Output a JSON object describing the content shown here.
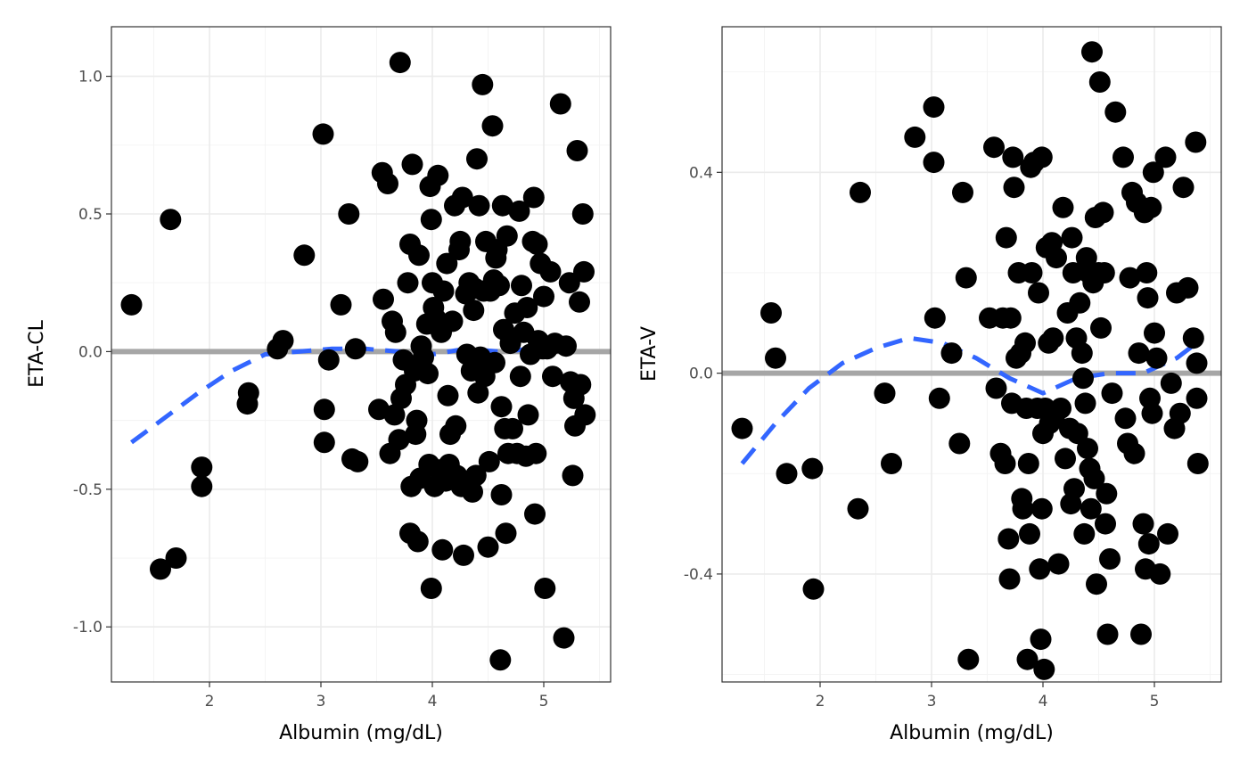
{
  "chart_data": [
    {
      "type": "scatter",
      "xlabel": "Albumin (mg/dL)",
      "ylabel": "ETA-CL",
      "xlim": [
        1.12,
        5.6
      ],
      "ylim": [
        -1.2,
        1.18
      ],
      "x_ticks": [
        2,
        3,
        4,
        5
      ],
      "x_tick_labels": [
        "2",
        "3",
        "4",
        "5"
      ],
      "y_ticks": [
        -1.0,
        -0.5,
        0.0,
        0.5,
        1.0
      ],
      "y_tick_labels": [
        "-1.0",
        "-0.5",
        "0.0",
        "0.5",
        "1.0"
      ],
      "grid": true,
      "reference_line": {
        "y": 0,
        "color": "#a6a6a6"
      },
      "smooth": {
        "color": "#3366ff",
        "style": "dashed",
        "x": [
          1.3,
          1.6,
          1.9,
          2.2,
          2.5,
          2.8,
          3.1,
          3.4,
          3.7,
          4.0,
          4.3,
          4.6,
          4.9,
          5.2
        ],
        "y": [
          -0.33,
          -0.24,
          -0.15,
          -0.07,
          -0.01,
          0.0,
          0.01,
          0.01,
          0.0,
          -0.01,
          0.01,
          0.0,
          0.01,
          0.01
        ]
      },
      "points": [
        [
          1.3,
          0.17
        ],
        [
          1.56,
          -0.79
        ],
        [
          1.65,
          0.48
        ],
        [
          1.7,
          -0.75
        ],
        [
          1.93,
          -0.42
        ],
        [
          1.93,
          -0.49
        ],
        [
          2.34,
          -0.19
        ],
        [
          2.35,
          -0.15
        ],
        [
          2.61,
          0.01
        ],
        [
          2.66,
          0.04
        ],
        [
          2.85,
          0.35
        ],
        [
          3.02,
          0.79
        ],
        [
          3.03,
          -0.21
        ],
        [
          3.03,
          -0.33
        ],
        [
          3.07,
          -0.03
        ],
        [
          3.18,
          0.17
        ],
        [
          3.25,
          0.5
        ],
        [
          3.28,
          -0.39
        ],
        [
          3.31,
          0.01
        ],
        [
          3.33,
          -0.4
        ],
        [
          3.52,
          -0.21
        ],
        [
          3.55,
          0.65
        ],
        [
          3.56,
          0.19
        ],
        [
          3.6,
          0.61
        ],
        [
          3.62,
          -0.37
        ],
        [
          3.64,
          0.11
        ],
        [
          3.66,
          -0.23
        ],
        [
          3.67,
          0.07
        ],
        [
          3.7,
          -0.32
        ],
        [
          3.71,
          1.05
        ],
        [
          3.72,
          -0.17
        ],
        [
          3.74,
          -0.03
        ],
        [
          3.76,
          -0.12
        ],
        [
          3.78,
          0.25
        ],
        [
          3.8,
          0.39
        ],
        [
          3.8,
          -0.66
        ],
        [
          3.81,
          -0.49
        ],
        [
          3.82,
          0.68
        ],
        [
          3.84,
          -0.07
        ],
        [
          3.85,
          -0.3
        ],
        [
          3.86,
          -0.25
        ],
        [
          3.87,
          -0.69
        ],
        [
          3.88,
          0.35
        ],
        [
          3.89,
          -0.46
        ],
        [
          3.9,
          0.02
        ],
        [
          3.92,
          -0.02
        ],
        [
          3.95,
          0.1
        ],
        [
          3.96,
          -0.08
        ],
        [
          3.97,
          -0.41
        ],
        [
          3.98,
          0.6
        ],
        [
          3.99,
          0.48
        ],
        [
          3.99,
          -0.86
        ],
        [
          4.0,
          0.25
        ],
        [
          4.01,
          0.16
        ],
        [
          4.02,
          -0.49
        ],
        [
          4.03,
          0.12
        ],
        [
          4.05,
          0.64
        ],
        [
          4.06,
          -0.43
        ],
        [
          4.08,
          0.07
        ],
        [
          4.09,
          -0.72
        ],
        [
          4.1,
          0.22
        ],
        [
          4.12,
          -0.47
        ],
        [
          4.13,
          0.32
        ],
        [
          4.14,
          -0.16
        ],
        [
          4.15,
          -0.41
        ],
        [
          4.16,
          -0.3
        ],
        [
          4.18,
          0.11
        ],
        [
          4.2,
          0.53
        ],
        [
          4.21,
          -0.27
        ],
        [
          4.22,
          -0.45
        ],
        [
          4.24,
          0.37
        ],
        [
          4.25,
          0.4
        ],
        [
          4.26,
          -0.49
        ],
        [
          4.27,
          0.56
        ],
        [
          4.28,
          -0.74
        ],
        [
          4.3,
          0.21
        ],
        [
          4.31,
          -0.01
        ],
        [
          4.33,
          0.25
        ],
        [
          4.35,
          -0.07
        ],
        [
          4.36,
          -0.51
        ],
        [
          4.37,
          0.15
        ],
        [
          4.38,
          0.23
        ],
        [
          4.39,
          -0.45
        ],
        [
          4.4,
          0.7
        ],
        [
          4.41,
          -0.15
        ],
        [
          4.42,
          0.53
        ],
        [
          4.43,
          -0.02
        ],
        [
          4.44,
          -0.05
        ],
        [
          4.45,
          0.97
        ],
        [
          4.46,
          0.22
        ],
        [
          4.47,
          -0.09
        ],
        [
          4.48,
          0.4
        ],
        [
          4.5,
          -0.71
        ],
        [
          4.51,
          -0.4
        ],
        [
          4.52,
          0.22
        ],
        [
          4.54,
          0.82
        ],
        [
          4.55,
          0.26
        ],
        [
          4.56,
          -0.04
        ],
        [
          4.57,
          0.34
        ],
        [
          4.58,
          0.37
        ],
        [
          4.6,
          0.24
        ],
        [
          4.61,
          -1.12
        ],
        [
          4.62,
          -0.52
        ],
        [
          4.62,
          -0.2
        ],
        [
          4.63,
          0.53
        ],
        [
          4.64,
          0.08
        ],
        [
          4.65,
          -0.28
        ],
        [
          4.66,
          -0.66
        ],
        [
          4.67,
          0.42
        ],
        [
          4.68,
          -0.37
        ],
        [
          4.7,
          0.03
        ],
        [
          4.72,
          -0.28
        ],
        [
          4.74,
          0.14
        ],
        [
          4.76,
          -0.37
        ],
        [
          4.78,
          0.51
        ],
        [
          4.79,
          -0.09
        ],
        [
          4.8,
          0.24
        ],
        [
          4.82,
          0.07
        ],
        [
          4.84,
          -0.38
        ],
        [
          4.85,
          0.16
        ],
        [
          4.86,
          -0.23
        ],
        [
          4.88,
          -0.01
        ],
        [
          4.9,
          0.4
        ],
        [
          4.91,
          0.56
        ],
        [
          4.92,
          -0.59
        ],
        [
          4.93,
          -0.37
        ],
        [
          4.94,
          0.39
        ],
        [
          4.95,
          0.04
        ],
        [
          4.97,
          0.32
        ],
        [
          4.99,
          0.01
        ],
        [
          5.0,
          0.2
        ],
        [
          5.01,
          -0.86
        ],
        [
          5.03,
          0.01
        ],
        [
          5.06,
          0.29
        ],
        [
          5.08,
          -0.09
        ],
        [
          5.1,
          0.03
        ],
        [
          5.15,
          0.9
        ],
        [
          5.18,
          -1.04
        ],
        [
          5.2,
          0.02
        ],
        [
          5.23,
          0.25
        ],
        [
          5.24,
          -0.11
        ],
        [
          5.26,
          -0.45
        ],
        [
          5.27,
          -0.17
        ],
        [
          5.28,
          -0.27
        ],
        [
          5.3,
          0.73
        ],
        [
          5.32,
          0.18
        ],
        [
          5.33,
          -0.12
        ],
        [
          5.35,
          0.5
        ],
        [
          5.36,
          0.29
        ],
        [
          5.37,
          -0.23
        ]
      ]
    },
    {
      "type": "scatter",
      "xlabel": "Albumin (mg/dL)",
      "ylabel": "ETA-V",
      "xlim": [
        1.12,
        5.6
      ],
      "ylim": [
        -0.615,
        0.69
      ],
      "x_ticks": [
        2,
        3,
        4,
        5
      ],
      "x_tick_labels": [
        "2",
        "3",
        "4",
        "5"
      ],
      "y_ticks": [
        -0.4,
        0.0,
        0.4
      ],
      "y_tick_labels": [
        "-0.4",
        "0.0",
        "0.4"
      ],
      "grid": true,
      "reference_line": {
        "y": 0,
        "color": "#a6a6a6"
      },
      "smooth": {
        "color": "#3366ff",
        "style": "dashed",
        "x": [
          1.3,
          1.6,
          1.9,
          2.2,
          2.5,
          2.8,
          3.1,
          3.4,
          3.7,
          4.0,
          4.3,
          4.6,
          4.9,
          5.2,
          5.38
        ],
        "y": [
          -0.18,
          -0.1,
          -0.03,
          0.02,
          0.05,
          0.07,
          0.06,
          0.03,
          -0.01,
          -0.04,
          -0.01,
          0.0,
          0.0,
          0.03,
          0.06
        ]
      },
      "points": [
        [
          1.3,
          -0.11
        ],
        [
          1.56,
          0.12
        ],
        [
          1.6,
          0.03
        ],
        [
          1.7,
          -0.2
        ],
        [
          1.93,
          -0.19
        ],
        [
          1.94,
          -0.43
        ],
        [
          2.34,
          -0.27
        ],
        [
          2.36,
          0.36
        ],
        [
          2.58,
          -0.04
        ],
        [
          2.64,
          -0.18
        ],
        [
          2.85,
          0.47
        ],
        [
          3.02,
          0.53
        ],
        [
          3.02,
          0.42
        ],
        [
          3.03,
          0.11
        ],
        [
          3.07,
          -0.05
        ],
        [
          3.18,
          0.04
        ],
        [
          3.25,
          -0.14
        ],
        [
          3.28,
          0.36
        ],
        [
          3.31,
          0.19
        ],
        [
          3.33,
          -0.57
        ],
        [
          3.52,
          0.11
        ],
        [
          3.56,
          0.45
        ],
        [
          3.58,
          -0.03
        ],
        [
          3.62,
          -0.16
        ],
        [
          3.64,
          0.11
        ],
        [
          3.66,
          -0.18
        ],
        [
          3.67,
          0.27
        ],
        [
          3.69,
          -0.33
        ],
        [
          3.7,
          -0.41
        ],
        [
          3.71,
          0.11
        ],
        [
          3.72,
          -0.06
        ],
        [
          3.73,
          0.43
        ],
        [
          3.74,
          0.37
        ],
        [
          3.76,
          0.03
        ],
        [
          3.78,
          0.2
        ],
        [
          3.8,
          0.04
        ],
        [
          3.81,
          -0.25
        ],
        [
          3.82,
          -0.27
        ],
        [
          3.84,
          0.06
        ],
        [
          3.85,
          -0.07
        ],
        [
          3.86,
          -0.57
        ],
        [
          3.87,
          -0.18
        ],
        [
          3.88,
          -0.32
        ],
        [
          3.89,
          0.41
        ],
        [
          3.9,
          0.2
        ],
        [
          3.92,
          0.42
        ],
        [
          3.95,
          -0.07
        ],
        [
          3.96,
          0.16
        ],
        [
          3.97,
          -0.39
        ],
        [
          3.98,
          -0.53
        ],
        [
          3.99,
          0.43
        ],
        [
          3.99,
          -0.27
        ],
        [
          4.0,
          -0.12
        ],
        [
          4.01,
          -0.59
        ],
        [
          4.02,
          -0.07
        ],
        [
          4.03,
          0.25
        ],
        [
          4.05,
          0.06
        ],
        [
          4.06,
          -0.1
        ],
        [
          4.08,
          0.26
        ],
        [
          4.09,
          0.07
        ],
        [
          4.1,
          -0.09
        ],
        [
          4.12,
          0.23
        ],
        [
          4.14,
          -0.38
        ],
        [
          4.16,
          -0.07
        ],
        [
          4.18,
          0.33
        ],
        [
          4.2,
          -0.17
        ],
        [
          4.22,
          0.12
        ],
        [
          4.24,
          -0.11
        ],
        [
          4.25,
          -0.26
        ],
        [
          4.26,
          0.27
        ],
        [
          4.27,
          0.2
        ],
        [
          4.28,
          -0.23
        ],
        [
          4.3,
          0.07
        ],
        [
          4.31,
          -0.12
        ],
        [
          4.33,
          0.14
        ],
        [
          4.35,
          0.04
        ],
        [
          4.36,
          -0.01
        ],
        [
          4.37,
          -0.32
        ],
        [
          4.38,
          -0.06
        ],
        [
          4.39,
          0.23
        ],
        [
          4.4,
          -0.15
        ],
        [
          4.41,
          0.2
        ],
        [
          4.42,
          -0.19
        ],
        [
          4.43,
          -0.27
        ],
        [
          4.44,
          0.64
        ],
        [
          4.45,
          0.18
        ],
        [
          4.46,
          -0.21
        ],
        [
          4.47,
          0.31
        ],
        [
          4.48,
          -0.42
        ],
        [
          4.5,
          0.2
        ],
        [
          4.51,
          0.58
        ],
        [
          4.52,
          0.09
        ],
        [
          4.54,
          0.32
        ],
        [
          4.55,
          0.2
        ],
        [
          4.56,
          -0.3
        ],
        [
          4.57,
          -0.24
        ],
        [
          4.58,
          -0.52
        ],
        [
          4.6,
          -0.37
        ],
        [
          4.62,
          -0.04
        ],
        [
          4.65,
          0.52
        ],
        [
          4.72,
          0.43
        ],
        [
          4.74,
          -0.09
        ],
        [
          4.76,
          -0.14
        ],
        [
          4.78,
          0.19
        ],
        [
          4.8,
          0.36
        ],
        [
          4.82,
          -0.16
        ],
        [
          4.84,
          0.34
        ],
        [
          4.86,
          0.04
        ],
        [
          4.88,
          -0.52
        ],
        [
          4.9,
          -0.3
        ],
        [
          4.91,
          0.32
        ],
        [
          4.92,
          -0.39
        ],
        [
          4.93,
          0.2
        ],
        [
          4.94,
          0.15
        ],
        [
          4.95,
          -0.34
        ],
        [
          4.96,
          -0.05
        ],
        [
          4.97,
          0.33
        ],
        [
          4.98,
          -0.08
        ],
        [
          4.99,
          0.4
        ],
        [
          5.0,
          0.08
        ],
        [
          5.02,
          0.03
        ],
        [
          5.05,
          -0.4
        ],
        [
          5.1,
          0.43
        ],
        [
          5.12,
          -0.32
        ],
        [
          5.15,
          -0.02
        ],
        [
          5.18,
          -0.11
        ],
        [
          5.2,
          0.16
        ],
        [
          5.23,
          -0.08
        ],
        [
          5.26,
          0.37
        ],
        [
          5.3,
          0.17
        ],
        [
          5.35,
          0.07
        ],
        [
          5.37,
          0.46
        ],
        [
          5.38,
          0.02
        ],
        [
          5.39,
          -0.18
        ],
        [
          5.38,
          -0.05
        ]
      ]
    }
  ]
}
